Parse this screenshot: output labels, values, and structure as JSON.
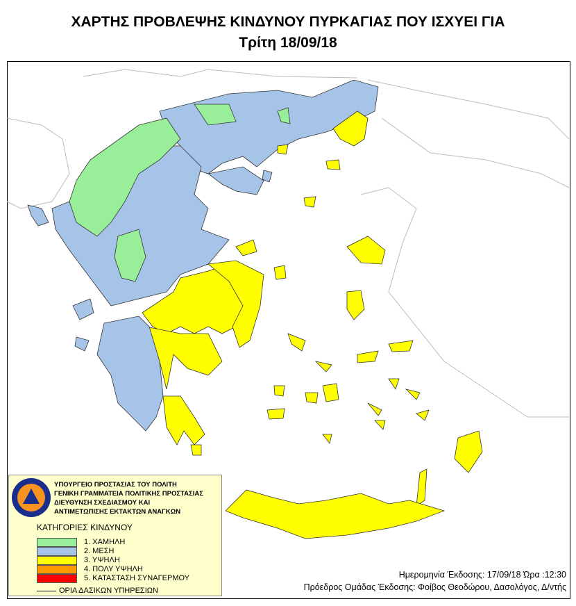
{
  "title_line1": "ΧΑΡΤΗΣ ΠΡΟΒΛΕΨΗΣ ΚΙΝΔΥΝΟΥ ΠΥΡΚΑΓΙΑΣ ΠΟΥ ΙΣΧΥΕΙ ΓΙΑ",
  "title_line2": "Τρίτη 18/09/18",
  "legend": {
    "logo_text": "ΠΟΛΙΤΙΚΗ ΠΡΟΣΤΑΣΙΑ ΕΛΛΑΔΑ",
    "org": [
      "ΥΠΟΥΡΓΕΙΟ ΠΡΟΣΤΑΣΙΑΣ ΤΟΥ ΠΟΛΙΤΗ",
      "ΓΕΝΙΚΗ ΓΡΑΜΜΑΤΕΙΑ ΠΟΛΙΤΙΚΗΣ ΠΡΟΣΤΑΣΙΑΣ",
      "ΔΙΕΥΘΥΝΣΗ ΣΧΕΔΙΑΣΜΟΥ ΚΑΙ",
      "ΑΝΤΙΜΕΤΩΠΙΣΗΣ ΕΚΤΑΚΤΩΝ ΑΝΑΓΚΩΝ"
    ],
    "categories_title": "ΚΑΤΗΓΟΡΙΕΣ ΚΙΝΔΥΝΟΥ",
    "categories": [
      {
        "label": "1. ΧΑΜΗΛΗ",
        "color": "#99ee99"
      },
      {
        "label": "2. ΜΕΣΗ",
        "color": "#a6c4e8"
      },
      {
        "label": "3. ΥΨΗΛΗ",
        "color": "#ffff00"
      },
      {
        "label": "4. ΠΟΛΥ ΥΨΗΛΗ",
        "color": "#ff9900"
      },
      {
        "label": "5. ΚΑΤΑΣΤΑΣΗ ΣΥΝΑΓΕΡΜΟΥ",
        "color": "#ff0000"
      }
    ],
    "boundary_label": "ΟΡΙΑ ΔΑΣΙΚΩΝ ΥΠΗΡΕΣΙΩΝ"
  },
  "footer": {
    "issue_date": "Ημερομηνία Έκδοσης: 17/09/18  Ώρα :12:30",
    "issuer": "Πρόεδρος Ομάδας Έκδοσης: Φοίβος Θεοδώρου,  Δασολόγος, Δ/ντής"
  }
}
